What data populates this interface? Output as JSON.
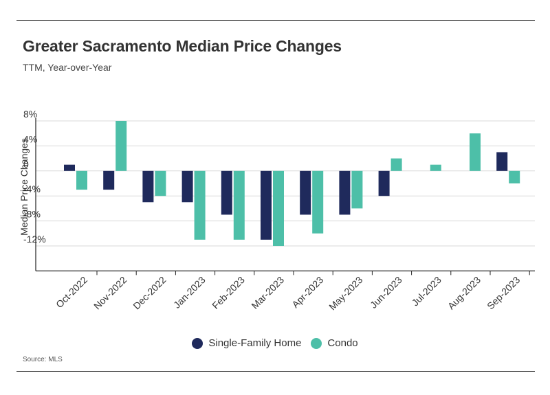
{
  "title": "Greater Sacramento Median Price Changes",
  "subtitle": "TTM, Year-over-Year",
  "source": "Source: MLS",
  "colors": {
    "single_family": "#1f2a5c",
    "condo": "#4dbfa8",
    "grid": "#d9d9d9",
    "axis": "#222222"
  },
  "chart_data": {
    "type": "bar",
    "categories": [
      "Oct-2022",
      "Nov-2022",
      "Dec-2022",
      "Jan-2023",
      "Feb-2023",
      "Mar-2023",
      "Apr-2023",
      "May-2023",
      "Jun-2023",
      "Jul-2023",
      "Aug-2023",
      "Sep-2023"
    ],
    "series": [
      {
        "name": "Single-Family Home",
        "values": [
          1,
          -3,
          -5,
          -5,
          -7,
          -11,
          -7,
          -7,
          -4,
          0,
          0,
          3
        ]
      },
      {
        "name": "Condo",
        "values": [
          -3,
          8,
          -4,
          -11,
          -11,
          -12,
          -10,
          -6,
          2,
          1,
          6,
          -2
        ]
      }
    ],
    "ylabel": "Median Price Changes",
    "yticks": [
      8,
      4,
      0,
      -4,
      -8,
      -12
    ],
    "ytick_labels": [
      "8%",
      "4%",
      "0",
      "-4%",
      "-8%",
      "-12%"
    ],
    "ylim": [
      -16,
      8
    ],
    "grid": true,
    "legend": "bottom-center"
  }
}
